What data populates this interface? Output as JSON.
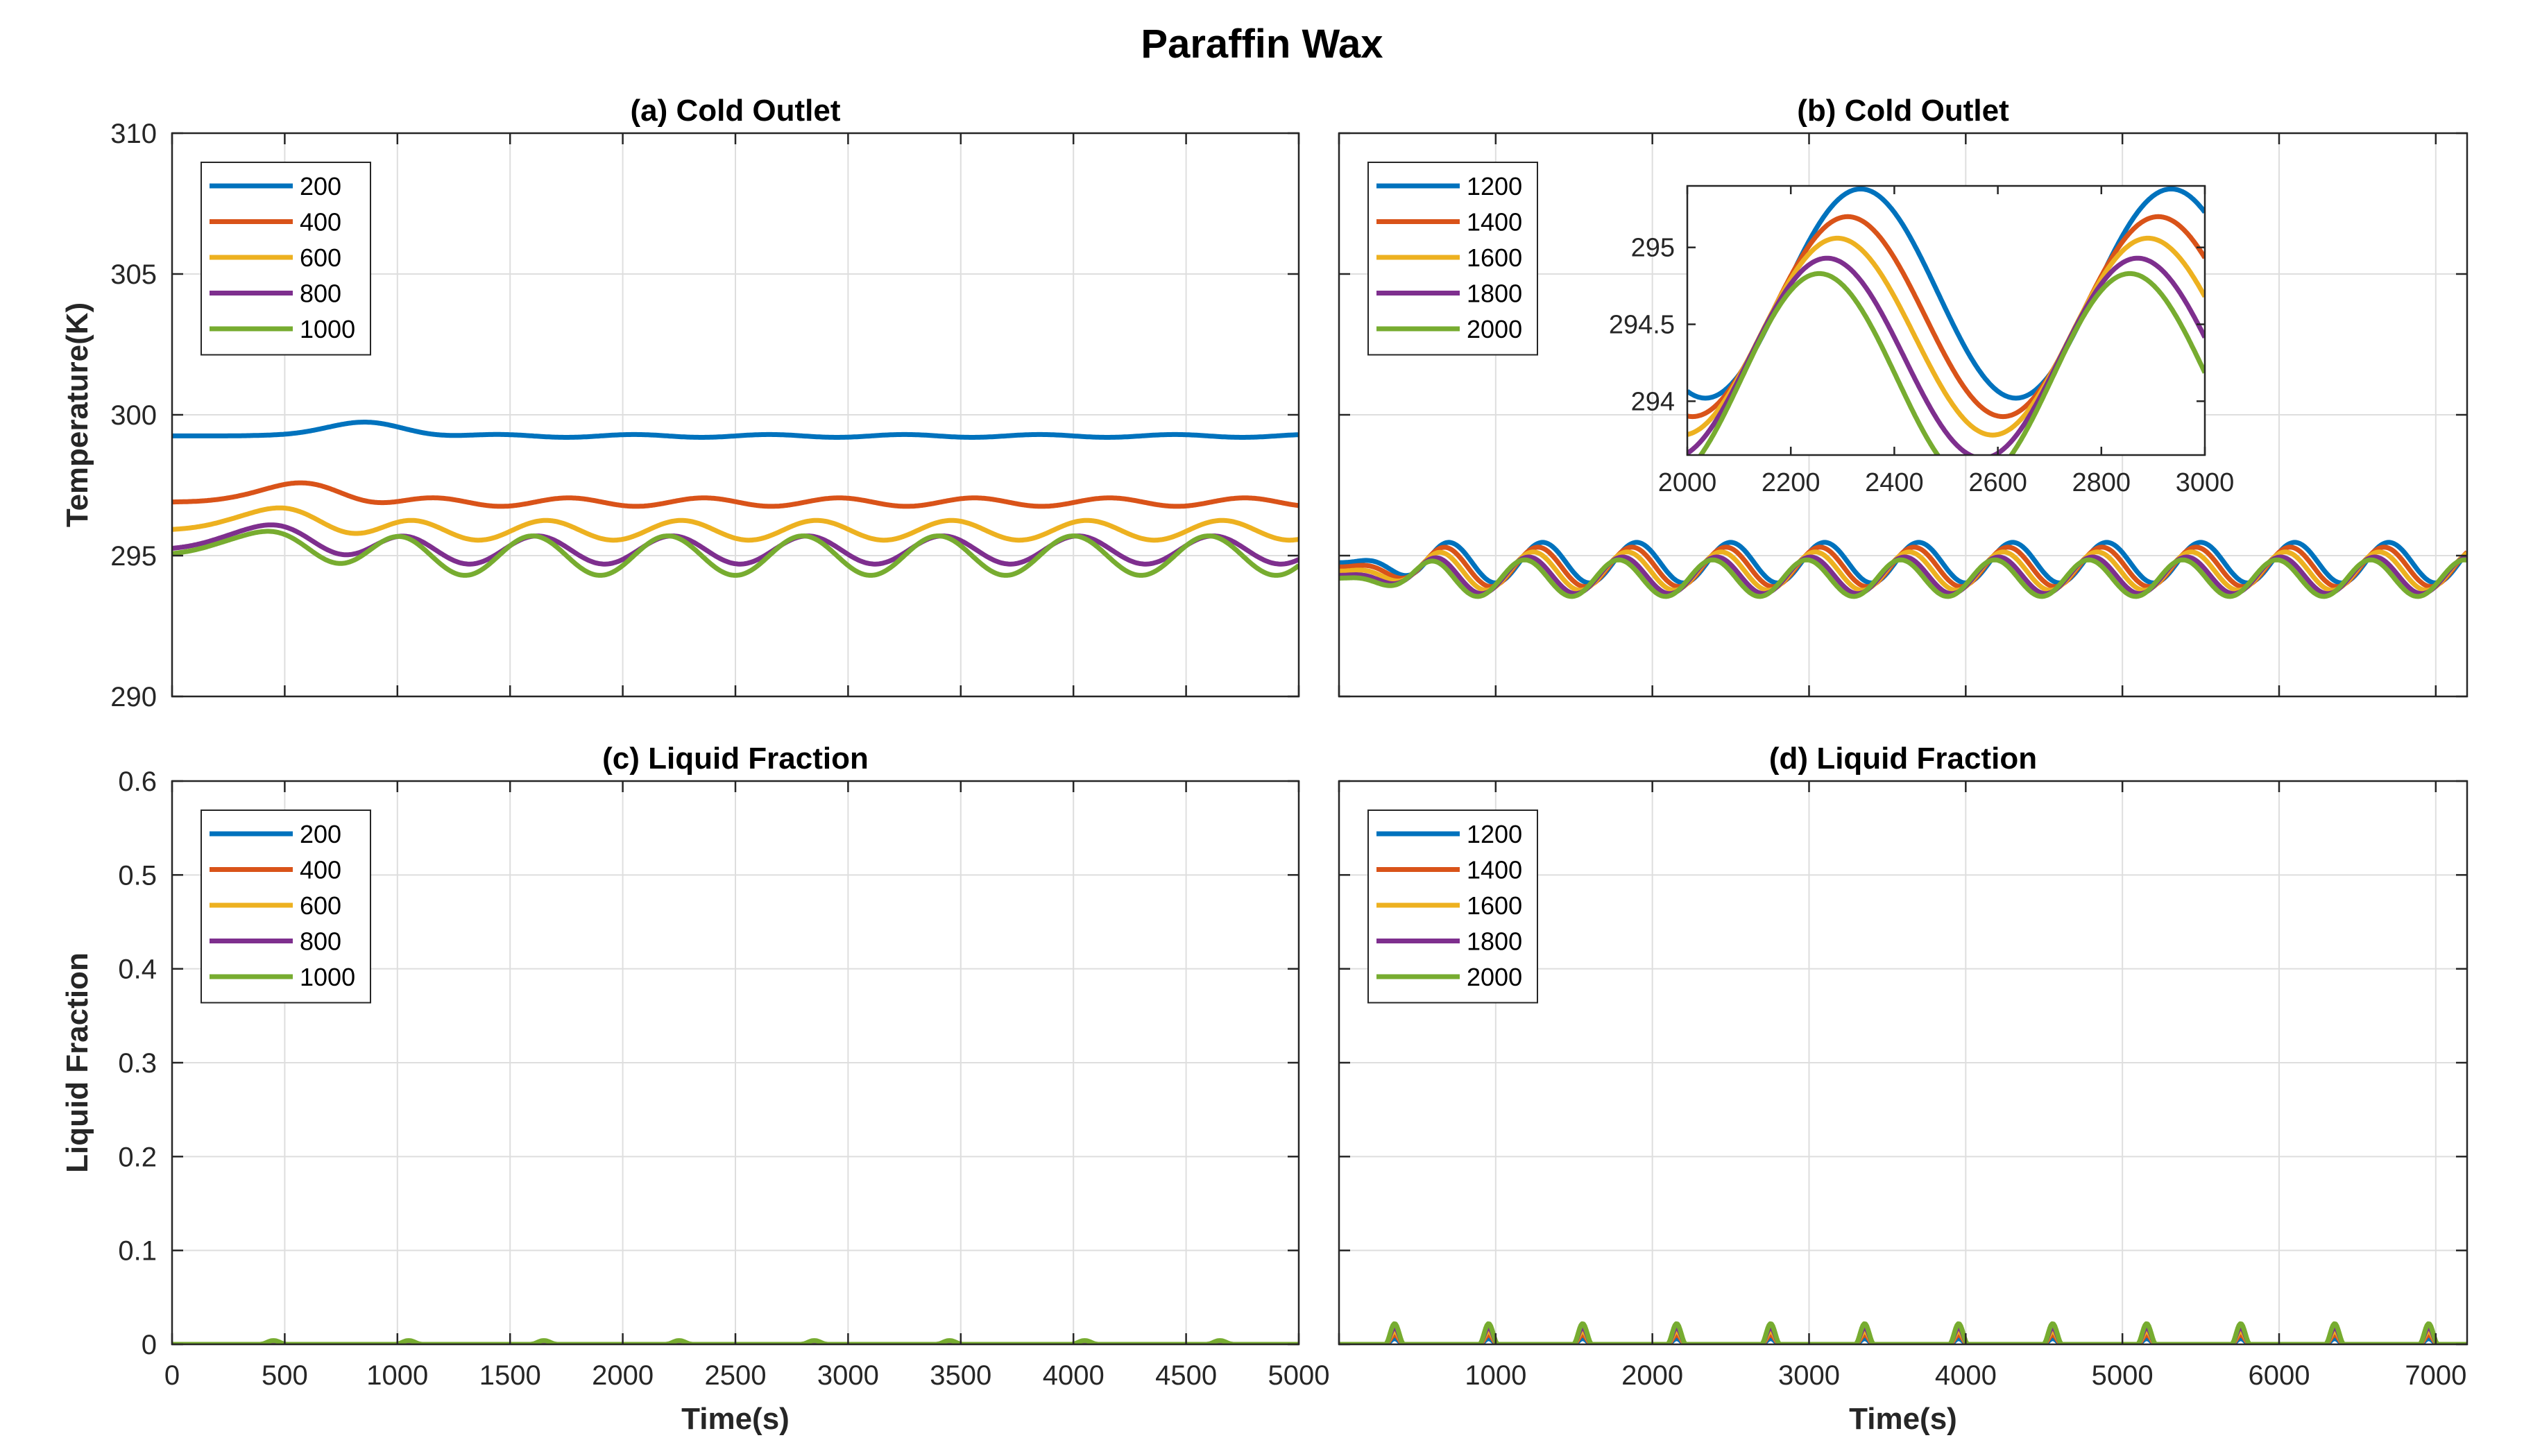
{
  "figure_title": "Paraffin Wax",
  "colors": [
    "#0072BD",
    "#D95319",
    "#EDB120",
    "#7E2F8E",
    "#77AC30"
  ],
  "chart_data": [
    {
      "id": "a",
      "type": "line",
      "title": "(a) Cold Outlet",
      "xlabel": "",
      "ylabel": "Temperature(K)",
      "xlim": [
        0,
        5000
      ],
      "ylim": [
        290,
        310
      ],
      "xticks": [
        0,
        500,
        1000,
        1500,
        2000,
        2500,
        3000,
        3500,
        4000,
        4500,
        5000
      ],
      "xtick_labels": [],
      "yticks": [
        290,
        295,
        300,
        305,
        310
      ],
      "ytick_labels": [
        "290",
        "295",
        "300",
        "305",
        "310"
      ],
      "grid": true,
      "legend": "top-left",
      "period": 600,
      "series": [
        {
          "name": "200",
          "base": 299.25,
          "amp": 0.05,
          "bump": 0.5,
          "bump_t": 850
        },
        {
          "name": "400",
          "base": 296.9,
          "amp": 0.15,
          "bump": 0.7,
          "bump_t": 560
        },
        {
          "name": "600",
          "base": 295.9,
          "amp": 0.35,
          "bump": 0.8,
          "bump_t": 460
        },
        {
          "name": "800",
          "base": 295.2,
          "amp": 0.5,
          "bump": 0.9,
          "bump_t": 420
        },
        {
          "name": "1000",
          "base": 295.0,
          "amp": 0.7,
          "bump": 0.85,
          "bump_t": 400
        }
      ]
    },
    {
      "id": "b",
      "type": "line",
      "title": "(b) Cold Outlet",
      "xlabel": "",
      "ylabel": "",
      "xlim": [
        0,
        7200
      ],
      "ylim": [
        290,
        310
      ],
      "xticks": [
        0,
        1000,
        2000,
        3000,
        4000,
        5000,
        6000,
        7000
      ],
      "xtick_labels": [],
      "yticks": [
        290,
        295,
        300,
        305,
        310
      ],
      "ytick_labels": [],
      "grid": true,
      "legend": "top-left",
      "period": 600,
      "series": [
        {
          "name": "1200",
          "base": 294.75,
          "amp": 0.72,
          "phase_t": 700
        },
        {
          "name": "1400",
          "base": 294.6,
          "amp": 0.7,
          "phase_t": 670
        },
        {
          "name": "1600",
          "base": 294.45,
          "amp": 0.68,
          "phase_t": 640
        },
        {
          "name": "1800",
          "base": 294.3,
          "amp": 0.65,
          "phase_t": 610
        },
        {
          "name": "2000",
          "base": 294.2,
          "amp": 0.65,
          "phase_t": 585
        }
      ],
      "inset": {
        "xlim": [
          2000,
          3000
        ],
        "ylim": [
          293.65,
          295.4
        ],
        "xticks": [
          2000,
          2200,
          2400,
          2600,
          2800,
          3000
        ],
        "xtick_labels": [
          "2000",
          "2200",
          "2400",
          "2600",
          "2800",
          "3000"
        ],
        "yticks": [
          294,
          294.5,
          295
        ],
        "ytick_labels": [
          "294",
          "294.5",
          "295"
        ],
        "period": 600,
        "series": [
          {
            "name": "1200",
            "mid": 294.7,
            "amp": 0.68,
            "peak_t": 2335
          },
          {
            "name": "1400",
            "mid": 294.55,
            "amp": 0.65,
            "peak_t": 2310
          },
          {
            "name": "1600",
            "mid": 294.42,
            "amp": 0.64,
            "peak_t": 2290
          },
          {
            "name": "1800",
            "mid": 294.28,
            "amp": 0.65,
            "peak_t": 2270
          },
          {
            "name": "2000",
            "mid": 294.15,
            "amp": 0.68,
            "peak_t": 2255
          }
        ]
      }
    },
    {
      "id": "c",
      "type": "line",
      "title": "(c) Liquid Fraction",
      "xlabel": "Time(s)",
      "ylabel": "Liquid Fraction",
      "xlim": [
        0,
        5000
      ],
      "ylim": [
        0,
        0.6
      ],
      "xticks": [
        0,
        500,
        1000,
        1500,
        2000,
        2500,
        3000,
        3500,
        4000,
        4500,
        5000
      ],
      "xtick_labels": [
        "0",
        "500",
        "1000",
        "1500",
        "2000",
        "2500",
        "3000",
        "3500",
        "4000",
        "4500",
        "5000"
      ],
      "yticks": [
        0,
        0.1,
        0.2,
        0.3,
        0.4,
        0.5,
        0.6
      ],
      "ytick_labels": [
        "0",
        "0.1",
        "0.2",
        "0.3",
        "0.4",
        "0.5",
        "0.6"
      ],
      "grid": true,
      "legend": "top-left",
      "period": 600,
      "series": [
        {
          "name": "200",
          "peak": 0.0,
          "first_t": 450
        },
        {
          "name": "400",
          "peak": 0.001,
          "first_t": 450
        },
        {
          "name": "600",
          "peak": 0.002,
          "first_t": 450
        },
        {
          "name": "800",
          "peak": 0.003,
          "first_t": 450
        },
        {
          "name": "1000",
          "peak": 0.004,
          "first_t": 450
        }
      ]
    },
    {
      "id": "d",
      "type": "line",
      "title": "(d) Liquid Fraction",
      "xlabel": "Time(s)",
      "ylabel": "",
      "xlim": [
        0,
        7200
      ],
      "ylim": [
        0,
        0.6
      ],
      "xticks": [
        0,
        1000,
        2000,
        3000,
        4000,
        5000,
        6000,
        7000
      ],
      "xtick_labels": [
        "",
        "1000",
        "2000",
        "3000",
        "4000",
        "5000",
        "6000",
        "7000"
      ],
      "yticks": [
        0,
        0.1,
        0.2,
        0.3,
        0.4,
        0.5,
        0.6
      ],
      "ytick_labels": [],
      "grid": true,
      "legend": "top-left",
      "period": 600,
      "series": [
        {
          "name": "1200",
          "peak": 0.006,
          "first_t": 355
        },
        {
          "name": "1400",
          "peak": 0.01,
          "first_t": 355
        },
        {
          "name": "1600",
          "peak": 0.014,
          "first_t": 355
        },
        {
          "name": "1800",
          "peak": 0.018,
          "first_t": 355
        },
        {
          "name": "2000",
          "peak": 0.022,
          "first_t": 355
        }
      ]
    }
  ]
}
